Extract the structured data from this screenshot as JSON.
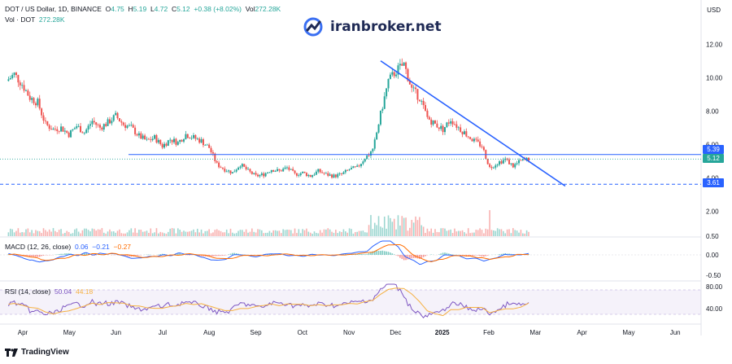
{
  "header": {
    "symbol": "DOT / US Dollar, 1D, BINANCE",
    "open_label": "O",
    "open": "4.75",
    "high_label": "H",
    "high": "5.19",
    "low_label": "L",
    "low": "4.72",
    "close_label": "C",
    "close": "5.12",
    "change": "+0.38 (+8.02%)",
    "vol_label": "Vol",
    "vol": "272.28K",
    "vol_row_label": "Vol · DOT",
    "vol_row_value": "272.28K",
    "currency": "USD"
  },
  "watermark": {
    "text": "iranbroker.net"
  },
  "indicators": {
    "macd_label": "MACD (12, 26, close)",
    "macd_v1": "0.06",
    "macd_v2": "−0.21",
    "macd_v3": "−0.27",
    "rsi_label": "RSI (14, close)",
    "rsi_v1": "50.04",
    "rsi_v2": "44.18"
  },
  "price_tags": {
    "level": "5.39",
    "last": "5.12",
    "support": "3.61"
  },
  "footer": {
    "brand": "TradingView"
  },
  "colors": {
    "up": "#26a69a",
    "down": "#ef5350",
    "trendline": "#2962ff",
    "macd": "#2962ff",
    "signal": "#ff6d00",
    "rsi": "#7e57c2",
    "rsi_ma": "#f5b041"
  },
  "chart_data": [
    {
      "type": "candlestick",
      "title": "DOT / US Dollar, 1D, BINANCE",
      "x_months": [
        "Apr",
        "May",
        "Jun",
        "Jul",
        "Aug",
        "Sep",
        "Oct",
        "Nov",
        "Dec",
        "2025",
        "Feb",
        "Mar",
        "Apr",
        "May",
        "Jun"
      ],
      "y_ticks": [
        "12.00",
        "10.00",
        "8.00",
        "6.00",
        "4.00",
        "2.00",
        "0.50"
      ],
      "ylim": [
        0.5,
        12.5
      ],
      "price_path": [
        [
          0,
          9.8
        ],
        [
          4,
          10.2
        ],
        [
          8,
          9.6
        ],
        [
          12,
          8.8
        ],
        [
          16,
          8.5
        ],
        [
          20,
          7.2
        ],
        [
          24,
          6.9
        ],
        [
          28,
          7.0
        ],
        [
          32,
          6.6
        ],
        [
          36,
          7.1
        ],
        [
          40,
          6.7
        ],
        [
          44,
          7.4
        ],
        [
          48,
          7.0
        ],
        [
          52,
          7.3
        ],
        [
          56,
          7.7
        ],
        [
          60,
          7.2
        ],
        [
          64,
          7.0
        ],
        [
          68,
          6.5
        ],
        [
          72,
          6.2
        ],
        [
          76,
          6.4
        ],
        [
          80,
          5.9
        ],
        [
          84,
          6.3
        ],
        [
          88,
          6.1
        ],
        [
          92,
          6.6
        ],
        [
          96,
          6.4
        ],
        [
          100,
          6.2
        ],
        [
          104,
          5.8
        ],
        [
          108,
          4.8
        ],
        [
          112,
          4.5
        ],
        [
          116,
          4.3
        ],
        [
          120,
          4.8
        ],
        [
          124,
          4.4
        ],
        [
          128,
          4.1
        ],
        [
          132,
          4.2
        ],
        [
          136,
          4.5
        ],
        [
          140,
          4.4
        ],
        [
          144,
          4.6
        ],
        [
          148,
          4.2
        ],
        [
          152,
          4.3
        ],
        [
          156,
          4.1
        ],
        [
          160,
          4.4
        ],
        [
          164,
          4.2
        ],
        [
          168,
          4.1
        ],
        [
          172,
          4.2
        ],
        [
          176,
          4.5
        ],
        [
          180,
          4.6
        ],
        [
          184,
          5.2
        ],
        [
          188,
          5.6
        ],
        [
          192,
          7.8
        ],
        [
          196,
          9.8
        ],
        [
          200,
          10.4
        ],
        [
          204,
          10.8
        ],
        [
          208,
          9.3
        ],
        [
          212,
          8.8
        ],
        [
          216,
          7.6
        ],
        [
          220,
          7.2
        ],
        [
          224,
          6.9
        ],
        [
          228,
          7.5
        ],
        [
          232,
          7.0
        ],
        [
          236,
          6.6
        ],
        [
          240,
          6.2
        ],
        [
          244,
          5.9
        ],
        [
          248,
          4.6
        ],
        [
          252,
          4.9
        ],
        [
          256,
          5.1
        ],
        [
          260,
          4.7
        ],
        [
          264,
          5.0
        ],
        [
          268,
          5.12
        ]
      ],
      "horizontal_levels": [
        5.39,
        3.61
      ],
      "trendline": {
        "from": [
          10.9,
          "Dec"
        ],
        "to": [
          3.6,
          "Mar"
        ]
      }
    },
    {
      "type": "line",
      "title": "MACD (12, 26, close)",
      "y_ticks": [
        "0.00",
        "-0.50"
      ],
      "series": [
        {
          "name": "MACD",
          "last": 0.06
        },
        {
          "name": "Signal",
          "last": -0.21
        },
        {
          "name": "Histogram",
          "last": -0.27
        }
      ]
    },
    {
      "type": "line",
      "title": "RSI (14, close)",
      "y_ticks": [
        "80.00",
        "40.00"
      ],
      "series": [
        {
          "name": "RSI",
          "last": 50.04
        },
        {
          "name": "RSI MA",
          "last": 44.18
        }
      ]
    }
  ]
}
